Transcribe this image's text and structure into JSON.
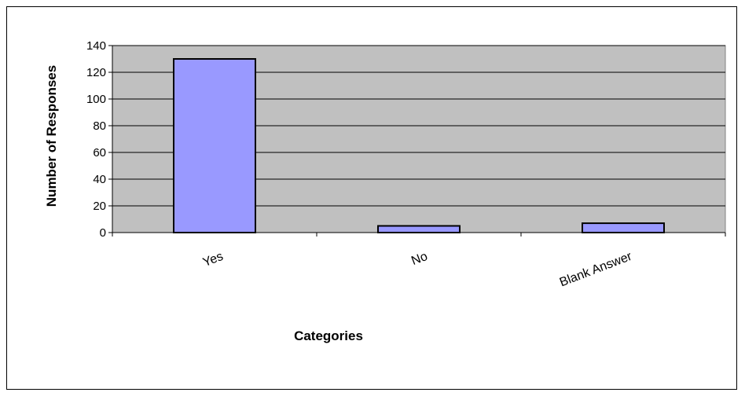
{
  "chart_data": {
    "type": "bar",
    "title": "",
    "xlabel": "Categories",
    "ylabel": "Number of Responses",
    "categories": [
      "Yes",
      "No",
      "Blank Answer"
    ],
    "values": [
      130,
      5,
      7
    ],
    "ylim": [
      0,
      140
    ],
    "yticks": [
      0,
      20,
      40,
      60,
      80,
      100,
      120,
      140
    ],
    "ytick_labels": [
      "0",
      "20",
      "40",
      "60",
      "80",
      "100",
      "120",
      "140"
    ],
    "grid": true,
    "legend": "none",
    "colors": {
      "bar_fill": "#9999ff",
      "bar_stroke": "#000000",
      "plot_background": "#c0c0c0",
      "gridline": "#000000"
    }
  }
}
